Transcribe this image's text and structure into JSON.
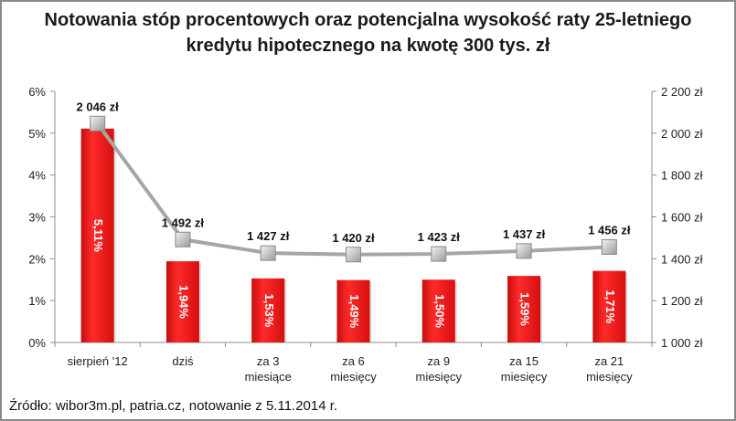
{
  "title_line1": "Notowania stóp procentowych oraz potencjalna wysokość raty 25-letniego",
  "title_line2": "kredytu hipotecznego na kwotę 300 tys. zł",
  "source": "Źródło: wibor3m.pl, patria.cz, notowanie z 5.11.2014 r.",
  "chart_data": {
    "type": "bar",
    "categories": [
      [
        "sierpień '12"
      ],
      [
        "dziś"
      ],
      [
        "za 3",
        "miesiące"
      ],
      [
        "za 6",
        "miesięcy"
      ],
      [
        "za 9",
        "miesięcy"
      ],
      [
        "za 15",
        "miesięcy"
      ],
      [
        "za 21",
        "miesięcy"
      ]
    ],
    "series": [
      {
        "type": "bar",
        "axis": "left",
        "values": [
          5.11,
          1.94,
          1.53,
          1.49,
          1.5,
          1.59,
          1.71
        ],
        "labels": [
          "5,11%",
          "1,94%",
          "1,53%",
          "1,49%",
          "1,50%",
          "1,59%",
          "1,71%"
        ],
        "color": "#e31414"
      },
      {
        "type": "line",
        "axis": "right",
        "values": [
          2046,
          1492,
          1427,
          1420,
          1423,
          1437,
          1456
        ],
        "labels": [
          "2 046 zł",
          "1 492 zł",
          "1 427 zł",
          "1 420 zł",
          "1 423 zł",
          "1 437 zł",
          "1 456 zł"
        ],
        "color": "#a6a6a6"
      }
    ],
    "y_left": {
      "min": 0,
      "max": 6,
      "ticks": [
        "0%",
        "1%",
        "2%",
        "3%",
        "4%",
        "5%",
        "6%"
      ]
    },
    "y_right": {
      "min": 1000,
      "max": 2200,
      "ticks": [
        "1 000 zł",
        "1 200 zł",
        "1 400 zł",
        "1 600 zł",
        "1 800 zł",
        "2 000 zł",
        "2 200 zł"
      ]
    },
    "grid": false,
    "legend": "none"
  }
}
